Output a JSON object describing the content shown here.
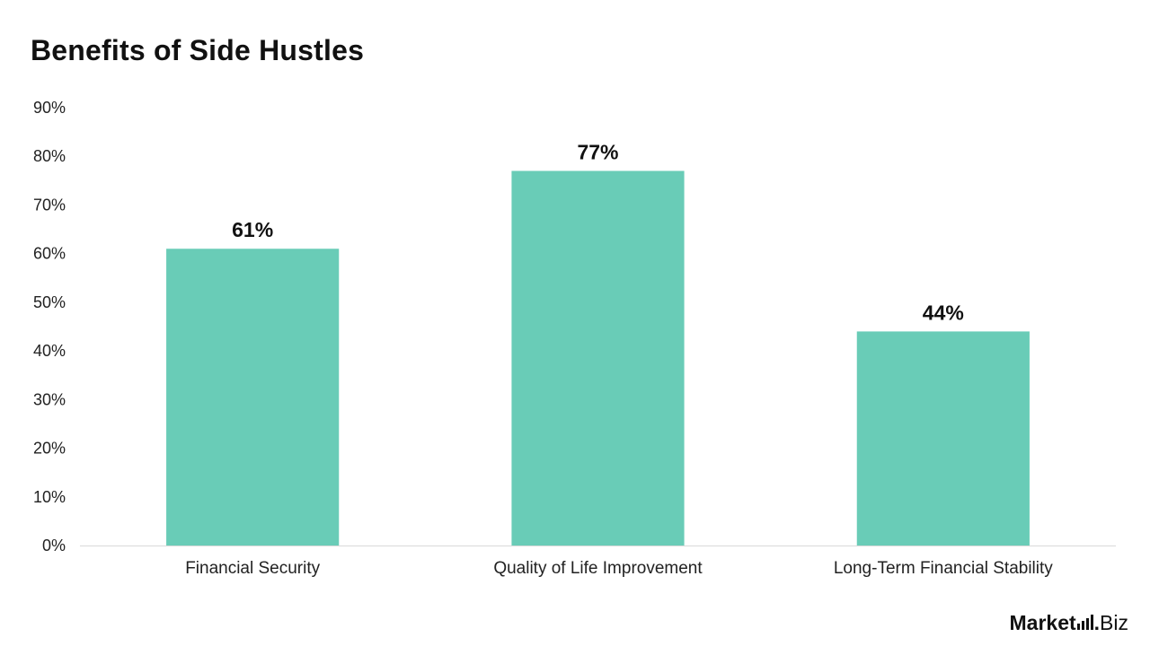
{
  "chart_data": {
    "type": "bar",
    "title": "Benefits of Side Hustles",
    "categories": [
      "Financial Security",
      "Quality of Life Improvement",
      "Long-Term Financial Stability"
    ],
    "values": [
      61,
      77,
      44
    ],
    "data_labels": [
      "61%",
      "77%",
      "44%"
    ],
    "ylim": [
      0,
      90
    ],
    "yticks": [
      0,
      10,
      20,
      30,
      40,
      50,
      60,
      70,
      80,
      90
    ],
    "ytick_labels": [
      "0%",
      "10%",
      "20%",
      "30%",
      "40%",
      "50%",
      "60%",
      "70%",
      "80%",
      "90%"
    ],
    "xlabel": "",
    "ylabel": "",
    "grid": false,
    "bar_color": "#69CCB7",
    "axis_color": "#D9D9D9"
  },
  "logo": {
    "word1": "Market",
    "dot": ".",
    "word2": "Biz"
  }
}
